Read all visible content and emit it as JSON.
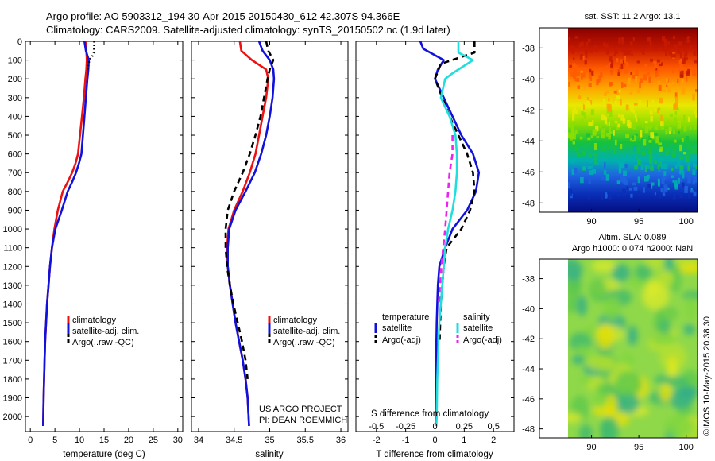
{
  "header": {
    "line1": "Argo profile: AO 5903312_194 30-Apr-2015 20150430_612 42.307S 94.366E",
    "line2": "Climatology: CARS2009. Satellite-adjusted climatology: synTS_20150502.nc (1.9d later)"
  },
  "colors": {
    "climatology": "#ee1111",
    "satellite": "#1111dd",
    "argo": "#000000",
    "sat_salinity": "#22dddd",
    "argo_salinity": "#ee22ee"
  },
  "chart_data": [
    {
      "id": "temperature",
      "type": "line",
      "xlabel": "temperature (deg C)",
      "ylabel": "",
      "xlim": [
        -1,
        31
      ],
      "ylim": [
        2080,
        0
      ],
      "xticks": [
        0,
        5,
        10,
        15,
        20,
        25,
        30
      ],
      "yticks": [
        0,
        100,
        200,
        300,
        400,
        500,
        600,
        700,
        800,
        900,
        1000,
        1100,
        1200,
        1300,
        1400,
        1500,
        1600,
        1700,
        1800,
        1900,
        2000
      ],
      "legend": [
        "climatology",
        "satellite-adj. clim.",
        "Argo(..raw -QC)"
      ],
      "series": [
        {
          "name": "climatology",
          "style": "solid",
          "color": "#ee1111",
          "x": [
            11.3,
            11.4,
            11.5,
            11.4,
            11.2,
            10.9,
            10.5,
            10.1,
            9.7,
            9.2,
            8.5,
            7.6,
            6.6,
            5.6,
            4.9,
            4.4,
            4.0,
            3.7,
            3.4,
            3.2,
            3.0,
            2.9,
            2.8,
            2.7,
            2.6
          ],
          "y": [
            0,
            50,
            100,
            150,
            200,
            300,
            400,
            500,
            600,
            650,
            700,
            750,
            800,
            900,
            1000,
            1100,
            1200,
            1300,
            1400,
            1500,
            1600,
            1700,
            1800,
            1900,
            2050
          ]
        },
        {
          "name": "satellite-adj. clim.",
          "style": "solid",
          "color": "#1111dd",
          "x": [
            11.0,
            11.3,
            11.9,
            11.8,
            11.6,
            11.3,
            11.0,
            10.7,
            10.4,
            9.9,
            9.3,
            8.5,
            7.6,
            6.4,
            5.1,
            4.4,
            4.0,
            3.7,
            3.4,
            3.2,
            3.0,
            2.9,
            2.8,
            2.7,
            2.6
          ],
          "y": [
            0,
            50,
            100,
            150,
            200,
            300,
            400,
            500,
            600,
            650,
            700,
            750,
            800,
            900,
            1000,
            1100,
            1200,
            1300,
            1400,
            1500,
            1600,
            1700,
            1800,
            1900,
            2050
          ]
        },
        {
          "name": "Argo(..raw -QC)",
          "style": "dotted",
          "color": "#000000",
          "x": [
            13.0,
            13.0,
            12.9,
            12.6,
            12.0,
            11.6
          ],
          "y": [
            0,
            30,
            60,
            80,
            100,
            160
          ]
        }
      ]
    },
    {
      "id": "salinity",
      "type": "line",
      "xlabel": "salinity",
      "ylabel": "",
      "xlim": [
        33.9,
        36.1
      ],
      "ylim": [
        2080,
        0
      ],
      "xticks": [
        34,
        34.5,
        35,
        35.5,
        36
      ],
      "legend": [
        "climatology",
        "satellite-adj. clim.",
        "Argo(..raw -QC)"
      ],
      "annotations": [
        "US ARGO PROJECT",
        "PI: DEAN ROEMMICH"
      ],
      "series": [
        {
          "name": "climatology",
          "style": "solid",
          "color": "#ee1111",
          "x": [
            34.58,
            34.6,
            34.75,
            34.95,
            34.98,
            34.95,
            34.9,
            34.85,
            34.8,
            34.72,
            34.62,
            34.5,
            34.42,
            34.4,
            34.41,
            34.44,
            34.48,
            34.52,
            34.57,
            34.62,
            34.66,
            34.69,
            34.71
          ],
          "y": [
            0,
            50,
            100,
            150,
            200,
            300,
            400,
            500,
            600,
            700,
            800,
            900,
            1000,
            1100,
            1200,
            1300,
            1400,
            1500,
            1600,
            1700,
            1800,
            1900,
            2050
          ]
        },
        {
          "name": "satellite-adj. clim.",
          "style": "solid",
          "color": "#1111dd",
          "x": [
            34.85,
            34.9,
            35.0,
            35.05,
            35.06,
            35.04,
            35.0,
            34.95,
            34.88,
            34.79,
            34.66,
            34.52,
            34.43,
            34.41,
            34.41,
            34.44,
            34.48,
            34.52,
            34.57,
            34.62,
            34.66,
            34.69,
            34.71
          ],
          "y": [
            0,
            50,
            100,
            150,
            200,
            300,
            400,
            500,
            600,
            700,
            800,
            900,
            1000,
            1100,
            1200,
            1300,
            1400,
            1500,
            1600,
            1700,
            1800,
            1900,
            2050
          ]
        },
        {
          "name": "Argo(..raw -QC)",
          "style": "dashed",
          "color": "#000000",
          "x": [
            34.95,
            34.98,
            35.05,
            35.0,
            34.97,
            34.92,
            34.87,
            34.8,
            34.72,
            34.62,
            34.5,
            34.41,
            34.38,
            34.38,
            34.4,
            34.44,
            34.49,
            34.55,
            34.61,
            34.66,
            34.69
          ],
          "y": [
            0,
            50,
            100,
            150,
            200,
            300,
            400,
            500,
            600,
            700,
            800,
            900,
            1000,
            1100,
            1200,
            1300,
            1400,
            1500,
            1600,
            1700,
            1800
          ]
        }
      ]
    },
    {
      "id": "difference",
      "type": "line",
      "xlabel": "T difference from climatology",
      "x2label": "S difference from climatology",
      "xlim": [
        -2.7,
        2.7
      ],
      "ylim": [
        2080,
        0
      ],
      "xticks": [
        -2,
        -1,
        0,
        1,
        2
      ],
      "x2ticks": [
        "-0.5",
        "-0.25",
        "0",
        "0.25",
        "0.5"
      ],
      "legend_headers": [
        "temperature",
        "salinity"
      ],
      "legend": [
        "satellite",
        "Argo(-adj)",
        "satellite",
        "Argo(-adj)"
      ],
      "series": [
        {
          "name": "satellite",
          "quantity": "temperature",
          "style": "solid",
          "color": "#1111dd",
          "x": [
            -0.5,
            -0.4,
            0.3,
            0.1,
            0.0,
            0.6,
            0.9,
            1.3,
            1.5,
            1.4,
            1.1,
            0.6,
            0.35,
            0.15,
            0.1,
            0.08,
            0.06,
            0.05,
            0.05,
            0.04,
            0.04,
            0.03,
            0.03
          ],
          "y": [
            0,
            40,
            100,
            150,
            200,
            400,
            500,
            600,
            700,
            800,
            900,
            1000,
            1100,
            1200,
            1300,
            1400,
            1500,
            1600,
            1700,
            1800,
            1900,
            2000,
            2050
          ]
        },
        {
          "name": "Argo(-adj)",
          "quantity": "temperature",
          "style": "dashed",
          "color": "#000000",
          "x": [
            1.35,
            1.35,
            0.2,
            0.0,
            0.5,
            0.8,
            1.1,
            1.3,
            1.35,
            1.2,
            0.9,
            0.4,
            0.3,
            0.25,
            0.2,
            0.18,
            0.16
          ],
          "y": [
            0,
            60,
            120,
            200,
            400,
            500,
            600,
            700,
            800,
            900,
            1000,
            1100,
            1200,
            1300,
            1400,
            1500,
            1600
          ]
        },
        {
          "name": "satellite",
          "quantity": "salinity",
          "style": "solid",
          "color": "#22dddd",
          "x": [
            0.8,
            0.8,
            1.3,
            0.6,
            0.35,
            0.2,
            0.5,
            0.7,
            0.75,
            0.75,
            0.7,
            0.6,
            0.45,
            0.35,
            0.3,
            0.25,
            0.2,
            0.15,
            0.12,
            0.1,
            0.08,
            0.07,
            0.06,
            0.05
          ],
          "y": [
            0,
            60,
            100,
            170,
            200,
            300,
            400,
            500,
            600,
            700,
            800,
            900,
            1000,
            1100,
            1200,
            1300,
            1400,
            1500,
            1600,
            1700,
            1800,
            1900,
            2000,
            2050
          ]
        },
        {
          "name": "Argo(-adj)",
          "quantity": "salinity",
          "style": "dashed",
          "color": "#ee22ee",
          "x": [
            0.6,
            0.6,
            0.5,
            0.45,
            0.4,
            0.35,
            0.28,
            0.22,
            0.17,
            0.13
          ],
          "y": [
            500,
            600,
            700,
            800,
            900,
            1000,
            1100,
            1200,
            1300,
            1400
          ]
        }
      ]
    },
    {
      "id": "sst-map",
      "type": "heatmap",
      "title": "sat. SST: 11.2  Argo: 13.1",
      "xticks": [
        90,
        95,
        100
      ],
      "yticks": [
        -38,
        -40,
        -42,
        -44,
        -46,
        -48
      ],
      "xlim": [
        84.5,
        101.2
      ],
      "ylim": [
        -48.6,
        -36.7
      ]
    },
    {
      "id": "sla-map",
      "type": "heatmap",
      "title_lines": [
        "Altim. SLA: 0.089",
        "Argo h1000: 0.074 h2000: NaN"
      ],
      "xticks": [
        90,
        95,
        100
      ],
      "yticks": [
        -38,
        -40,
        -42,
        -44,
        -46,
        -48
      ],
      "xlim": [
        84.5,
        101.2
      ],
      "ylim": [
        -48.6,
        -36.7
      ]
    }
  ],
  "credit": "©IMOS 10-May-2015 20:38:30"
}
